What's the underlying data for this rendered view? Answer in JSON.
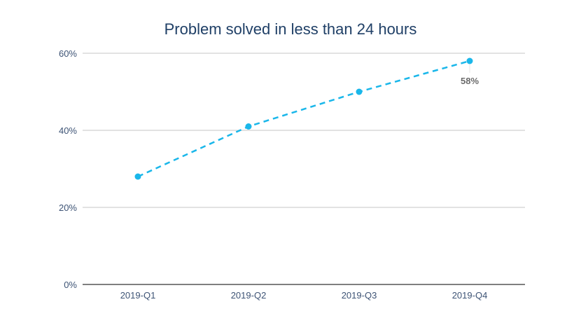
{
  "chart_data": {
    "type": "line",
    "title": "Problem solved in less than 24 hours",
    "xlabel": "",
    "ylabel": "",
    "categories": [
      "2019-Q1",
      "2019-Q2",
      "2019-Q3",
      "2019-Q4"
    ],
    "series": [
      {
        "name": "Problem solved in less than 24 hours",
        "values": [
          28,
          41,
          50,
          58
        ],
        "color": "#1ab7ea",
        "line_style": "dashed"
      }
    ],
    "ylim": [
      0,
      60
    ],
    "y_ticks": [
      "0%",
      "20%",
      "40%",
      "60%"
    ],
    "y_tick_values": [
      0,
      20,
      40,
      60
    ],
    "grid": true,
    "legend": "none",
    "annotations": [
      {
        "category": "2019-Q4",
        "text": "58%"
      }
    ]
  },
  "colors": {
    "series": "#1ab7ea",
    "grid": "#d9d9d9",
    "axis": "#555555",
    "title": "#1f3f66",
    "tick_text": "#3d5375",
    "annotation_text": "#6b6b6b"
  }
}
